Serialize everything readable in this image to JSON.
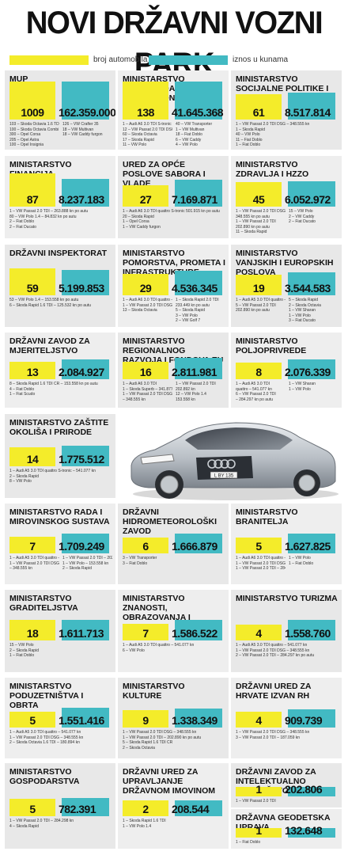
{
  "title": "NOVI DRŽAVNI VOZNI PARK",
  "legend": {
    "count_label": "broj automobila",
    "amount_label": "iznos u kunama",
    "count_color": "#f4ec2a",
    "amount_color": "#42bac3"
  },
  "cells": [
    {
      "name": "MUP",
      "count": "1009",
      "amount": "162.359.000",
      "cl": [
        "103 – Škoda Octavia 1.6 TDI",
        "100 – Škoda Octavia Combi",
        "300 – Opel Corsa",
        "205 – Opel Astra",
        "100 – Opel Insignia"
      ],
      "cr": [
        "126 – VW Crafter 35",
        "18 – VW Multivan",
        "18 – VW Caddy furgon"
      ],
      "countRatio": 1,
      "amountRatio": 1
    },
    {
      "name": "MINISTARSTVO PRAVOSUĐA I PRAVOSUDNA POLICIJA",
      "count": "138",
      "amount": "41.645.368",
      "cl": [
        "1 – Audi A6 3.0 TDI S-tronic",
        "12 – VW Passat 2.0 TDI DSG",
        "60 – Škoda Octavia",
        "17 – Škoda Rapid",
        "11 – VW Polo"
      ],
      "cr": [
        "40 – VW Transporter",
        "1 – VW Multivan",
        "18 – Fiat Doblo",
        "6 – VW Caddy",
        "4 – VW Polo"
      ],
      "countRatio": 1,
      "amountRatio": 1
    },
    {
      "name": "MINISTARSTVO SOCIJALNE POLITIKE I MLADIH",
      "count": "61",
      "amount": "8.517.814",
      "cl": [
        "1 – VW Passat 2.0 TDI DSG – 348.555 kn",
        "1 – Škoda Rapid",
        "40 – VW Polo",
        "11 – Fiat Doblo",
        "1 – Fiat Doblo"
      ],
      "cr": [],
      "countRatio": 0.5,
      "amountRatio": 0.55
    },
    {
      "name": "MINISTARSTVO FINANCIJA",
      "count": "87",
      "amount": "8.237.183",
      "cl": [
        "1 – VW Passat 2.0 TDI – 263.888 kn po autu",
        "80 – VW Polo 1.4 – 84.832 kn po autu",
        "2 – Fiat Doblo",
        "2 – Fiat Ducato"
      ],
      "cr": [],
      "countRatio": 0.75,
      "amountRatio": 0.55
    },
    {
      "name": "URED ZA OPĆE POSLOVE SABORA I VLADE",
      "count": "27",
      "amount": "7.169.871",
      "cl": [
        "1 – Audi A6 3.0 TDI quattro S-tronic 501.915 kn po autu",
        "20 – Škoda Rapid",
        "1 – Opel Corsa",
        "1 – VW Caddy furgon"
      ],
      "cr": [],
      "countRatio": 0.3,
      "amountRatio": 0.5
    },
    {
      "name": "MINISTARSTVO ZDRAVLJA I HZZO",
      "count": "45",
      "amount": "6.052.972",
      "cl": [
        "1 – VW Passat 2.0 TDI DSG",
        "348.555 kn po autu",
        "1 – VW Passat 2.0 TDI",
        "202.890 kn po autu",
        "11 – Škoda Rapid"
      ],
      "cr": [
        "15 – VW Polo",
        "2 – VW Caddy",
        "2 – Fiat Ducato"
      ],
      "countRatio": 0.4,
      "amountRatio": 0.45
    },
    {
      "name": "DRŽAVNI INSPEKTORAT",
      "count": "59",
      "amount": "5.199.853",
      "cl": [
        "53 – VW Polo 1.4 – 153.558 kn po autu",
        "6 – Škoda Rapid 1.6 TDI – 125.532 kn po autu"
      ],
      "cr": [],
      "countRatio": 0.5,
      "amountRatio": 0.45
    },
    {
      "name": "MINISTARSTVO POMORSTVA, PROMETA I INFRASTRUKTURE",
      "count": "29",
      "amount": "4.536.345",
      "cl": [
        "1 – Audi A6 3.0 TDI quattro – 541.077 kn",
        "1 – VW Passat 2.0 TDI DSG",
        "13 – Škoda Octavia"
      ],
      "cr": [
        "1 – Škoda Rapid 2.0 TDI",
        "233.449 kn po autu",
        "5 – Škoda Rapid",
        "3 – VW Polo",
        "2 – VW Golf 7"
      ],
      "countRatio": 0.3,
      "amountRatio": 0.4
    },
    {
      "name": "MINISTARSTVO VANJSKIH I EUROPSKIH POSLOVA",
      "count": "19",
      "amount": "3.544.583",
      "cl": [
        "1 – Audi A5 3.0 TDI quattro – 541.077 kn",
        "5 – VW Passat 2.0 TDI",
        "202.890 kn po autu"
      ],
      "cr": [
        "5 – Škoda Rapid",
        "2 – Škoda Octavia",
        "1 – VW Sharan",
        "1 – VW Polo",
        "3 – Fiat Ducato"
      ],
      "countRatio": 0.25,
      "amountRatio": 0.35
    },
    {
      "name": "DRŽAVNI ZAVOD ZA MJERITELJSTVO",
      "count": "13",
      "amount": "2.084.927",
      "cl": [
        "8 – Škoda Rapid 1.6 TDI CR – 153.558 kn po autu",
        "4 – Fiat Doblo",
        "1 – Fiat Scudo"
      ],
      "cr": [],
      "countRatio": 0.2,
      "amountRatio": 0.3
    },
    {
      "name": "MINISTARSTVO REGIONALNOG RAZVOJA I FONDOVA EU",
      "count": "16",
      "amount": "2.811.981",
      "cl": [
        "1 – Audi A6 3.0 TDI",
        "1 – Škoda Superb – 341.877 kn",
        "1 – VW Passat 2.0 TDI DSG",
        "– 348.555 kn"
      ],
      "cr": [
        "1 – VW Passat 2.0 TDI",
        "202.892 kn",
        "12 – VW Polo 1.4",
        "153.558 kn"
      ],
      "countRatio": 0.2,
      "amountRatio": 0.35
    },
    {
      "name": "MINISTARSTVO POLJOPRIVREDE",
      "count": "8",
      "amount": "2.076.339",
      "cl": [
        "1 – Audi A5 3.0 TDI",
        "quattro – 541.077 kn",
        "6 – VW Passat 2.0 TDI",
        "– 284.297 kn po autu"
      ],
      "cr": [
        "1 – VW Sharan",
        "1 – VW Polo"
      ],
      "countRatio": 0.15,
      "amountRatio": 0.3
    },
    {
      "name": "MINISTARSTVO ZAŠTITE OKOLIŠA I PRIRODE",
      "count": "14",
      "amount": "1.775.512",
      "cl": [
        "1 – Audi A5 3.0 TDI quattro S-tronic – 541.077 kn",
        "2 – Škoda Rapid",
        "8 – VW Polo"
      ],
      "cr": [],
      "countRatio": 0.2,
      "amountRatio": 0.25
    },
    {
      "name": "MINISTARSTVO RADA I MIROVINSKOG SUSTAVA",
      "count": "7",
      "amount": "1.709.249",
      "cl": [
        "1 – Audi A5 3.0 TDI quattro – 541.077 kn",
        "1 – VW Passat 2.0 TDI DSG",
        "– 348.555 kn"
      ],
      "cr": [
        "1 – VW Passat 2.0 TDI – 202.890 kn po autu",
        "1 – VW Polo – 153.558 kn",
        "2 – Škoda Rapid"
      ],
      "countRatio": 0.12,
      "amountRatio": 0.25
    },
    {
      "name": "DRŽAVNI HIDROMETEOROLOŠKI ZAVOD",
      "count": "6",
      "amount": "1.666.879",
      "cl": [
        "3 – VW Transporter",
        "3 – Fiat Doblo"
      ],
      "cr": [],
      "countRatio": 0.1,
      "amountRatio": 0.25
    },
    {
      "name": "MINISTARSTVO BRANITELJA",
      "count": "5",
      "amount": "1.627.825",
      "cl": [
        "1 – Audi A6 3.0 TDI quattro – 541.077 kn",
        "1 – VW Passat 2.0 TDI DSG – 348.555 kn",
        "1 – VW Passat 2.0 TDI – 284.297 kn"
      ],
      "cr": [
        "1 – VW Polo",
        "1 – Fiat Doblo"
      ],
      "countRatio": 0.1,
      "amountRatio": 0.25
    },
    {
      "name": "MINISTARSTVO GRADITELJSTVA",
      "count": "18",
      "amount": "1.611.713",
      "cl": [
        "15 – VW Polo",
        "2 – Škoda Rapid",
        "1 – Fiat Doblo"
      ],
      "cr": [],
      "countRatio": 0.25,
      "amountRatio": 0.25
    },
    {
      "name": "MINISTARSTVO ZNANOSTI, OBRAZOVANJA I SPORTA",
      "count": "7",
      "amount": "1.586.522",
      "cl": [
        "1 – Audi A5 3.0 TDI quattro – 541.077 kn",
        "6 – VW Polo"
      ],
      "cr": [],
      "countRatio": 0.12,
      "amountRatio": 0.25
    },
    {
      "name": "MINISTARSTVO TURIZMA",
      "count": "4",
      "amount": "1.558.760",
      "cl": [
        "1 – Audi A5 3.0 TDI quattro – 541.077 kn",
        "1 – VW Passat 2.0 TDI DSG – 348.555 kn",
        "2 – VW Passat 2.0 TDI – 284.297 kn po autu"
      ],
      "cr": [],
      "countRatio": 0.08,
      "amountRatio": 0.25
    },
    {
      "name": "MINISTARSTVO PODUZETNIŠTVA I OBRTA",
      "count": "5",
      "amount": "1.551.416",
      "cl": [
        "1 – Audi A5 3.0 TDI quattro – 541.077 kn",
        "1 – VW Passat 2.0 TDI DSG – 348.555 kn",
        "2 – Škoda Octavia 1.6 TDI – 180.894 kn"
      ],
      "cr": [],
      "countRatio": 0.1,
      "amountRatio": 0.25
    },
    {
      "name": "MINISTARSTVO KULTURE",
      "count": "9",
      "amount": "1.338.349",
      "cl": [
        "1 – VW Passat 2.0 TDI DSG – 348.555 kn",
        "1 – VW Passat 2.0 TDI – 202.890 kn po autu",
        "5 – Škoda Rapid 1.6 TDI CR",
        "2 – Škoda Octavia"
      ],
      "cr": [],
      "countRatio": 0.14,
      "amountRatio": 0.22
    },
    {
      "name": "DRŽAVNI URED ZA HRVATE IZVAN RH",
      "count": "4",
      "amount": "909.739",
      "cl": [
        "1 – VW Passat 2.0 TDI DSG – 348.555 kn",
        "3 – VW Passat 2.0 TDI – 187.059 kn"
      ],
      "cr": [],
      "countRatio": 0.08,
      "amountRatio": 0.18
    },
    {
      "name": "MINISTARSTVO GOSPODARSTVA",
      "count": "5",
      "amount": "782.391",
      "cl": [
        "1 – VW Passat 2.0 TDI – 284.298 kn",
        "4 – Škoda Rapid"
      ],
      "cr": [],
      "countRatio": 0.1,
      "amountRatio": 0.15
    },
    {
      "name": "DRŽAVNI URED ZA UPRAVLJANJE DRŽAVNOM IMOVINOM",
      "count": "2",
      "amount": "208.544",
      "cl": [
        "1 – Škoda Rapid 1.6 TDI",
        "1 – VW Polo 1.4"
      ],
      "cr": [],
      "countRatio": 0.06,
      "amountRatio": 0.06
    },
    {
      "name": "DRŽAVNI ZAVOD ZA INTELEKTUALNO VLASNIŠTVO",
      "count": "1",
      "amount": "202.806",
      "cl": [
        "1 – VW Passat 2.0 TDI"
      ],
      "cr": [],
      "countRatio": 0.04,
      "amountRatio": 0.06
    },
    {
      "name": "DRŽAVNA GEODETSKA UPRAVA",
      "count": "1",
      "amount": "132.648",
      "cl": [
        "1 – Fiat Doblo"
      ],
      "cr": [],
      "countRatio": 0.04,
      "amountRatio": 0.04
    }
  ],
  "car_plate": "L BY 135"
}
